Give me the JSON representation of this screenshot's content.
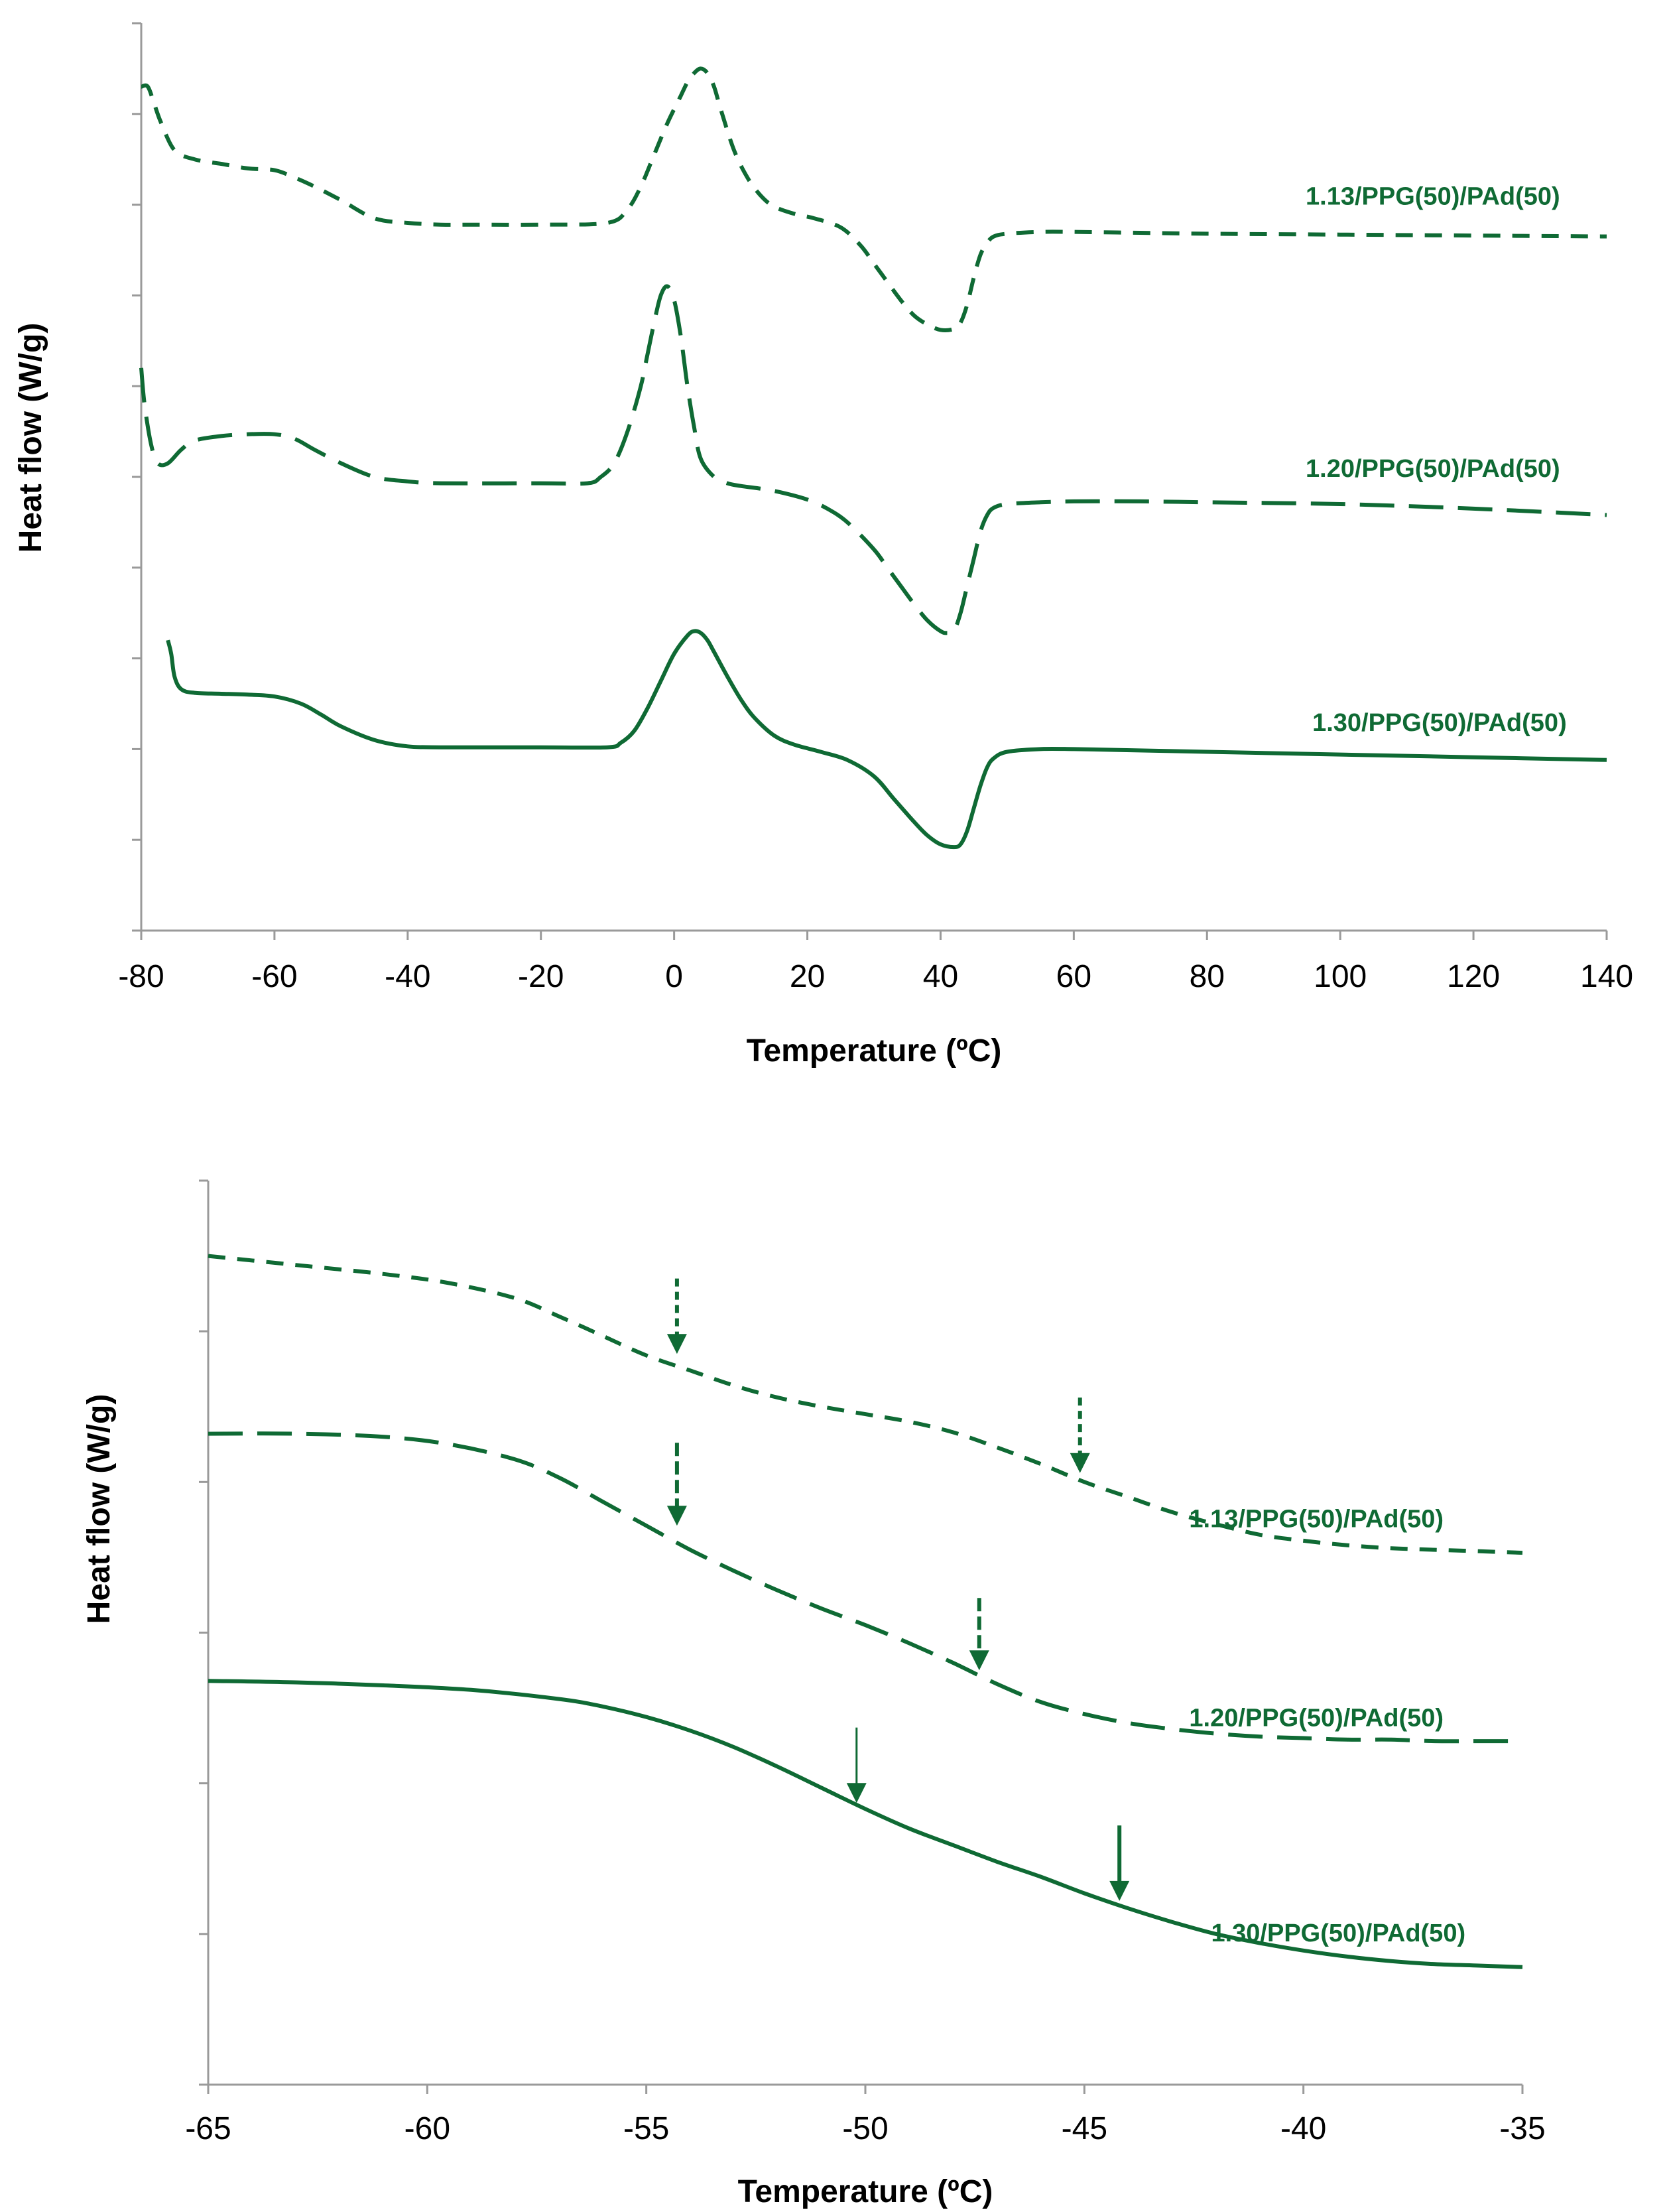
{
  "colors": {
    "series": "#0f6a34",
    "axis": "#9a9a9a",
    "text": "#000000"
  },
  "chart_data": [
    {
      "type": "line",
      "id": "top",
      "title": "",
      "xlabel": "Temperature (ºC)",
      "ylabel": "Heat flow (W/g)",
      "xlim": [
        -80,
        140
      ],
      "ylim": [
        0,
        10
      ],
      "xticks": [
        -80,
        -60,
        -40,
        -20,
        0,
        20,
        40,
        60,
        80,
        100,
        120,
        140
      ],
      "xtick_labels": [
        "-80",
        "-60",
        "-40",
        "-20",
        "0",
        "20",
        "40",
        "60",
        "80",
        "100",
        "120",
        "140"
      ],
      "yticks": [
        0,
        1,
        2,
        3,
        4,
        5,
        6,
        7,
        8,
        9,
        10
      ],
      "ytick_labels": [],
      "series": [
        {
          "name": "1.13/PPG(50)/PAd(50)",
          "style": "dashed-short",
          "label_at": [
            133,
            8.0
          ],
          "x": [
            -80,
            -79,
            -78,
            -77,
            -75,
            -72,
            -68,
            -64,
            -60,
            -57,
            -54,
            -50,
            -45,
            -40,
            -35,
            -30,
            -20,
            -10,
            -7,
            -5,
            -3,
            -1,
            1,
            2,
            3,
            4,
            5,
            6,
            7,
            9,
            11,
            13,
            15,
            18,
            21,
            25,
            28,
            30,
            32,
            34,
            36,
            38,
            40,
            42,
            43,
            44,
            45,
            46,
            47,
            48,
            50,
            55,
            60,
            70,
            80,
            100,
            120,
            140
          ],
          "y": [
            9.3,
            9.3,
            9.1,
            8.9,
            8.6,
            8.5,
            8.45,
            8.4,
            8.38,
            8.3,
            8.2,
            8.05,
            7.85,
            7.8,
            7.78,
            7.78,
            7.78,
            7.8,
            7.95,
            8.2,
            8.55,
            8.9,
            9.2,
            9.35,
            9.45,
            9.5,
            9.45,
            9.3,
            9.05,
            8.6,
            8.3,
            8.1,
            7.98,
            7.9,
            7.85,
            7.75,
            7.55,
            7.35,
            7.15,
            6.95,
            6.78,
            6.68,
            6.62,
            6.63,
            6.7,
            6.9,
            7.2,
            7.45,
            7.58,
            7.65,
            7.68,
            7.7,
            7.7,
            7.69,
            7.68,
            7.67,
            7.66,
            7.65
          ]
        },
        {
          "name": "1.20/PPG(50)/PAd(50)",
          "style": "dashed-long",
          "label_at": [
            133,
            5.0
          ],
          "x": [
            -80,
            -79.5,
            -78.5,
            -77.5,
            -76,
            -74,
            -72,
            -68,
            -64,
            -60,
            -57,
            -54,
            -50,
            -45,
            -40,
            -35,
            -20,
            -13,
            -11,
            -9,
            -7,
            -5,
            -4,
            -3,
            -2,
            -1,
            0,
            1,
            2,
            3,
            4,
            6,
            8,
            10,
            13,
            16,
            20,
            23,
            26,
            30,
            32,
            34,
            36,
            38,
            40,
            41,
            42,
            43,
            44,
            45,
            46,
            47,
            48,
            50,
            55,
            60,
            70,
            80,
            100,
            120,
            140
          ],
          "y": [
            6.2,
            5.8,
            5.35,
            5.15,
            5.15,
            5.3,
            5.4,
            5.45,
            5.47,
            5.47,
            5.42,
            5.3,
            5.15,
            5.0,
            4.95,
            4.93,
            4.93,
            4.93,
            5.0,
            5.15,
            5.5,
            6.0,
            6.35,
            6.7,
            7.0,
            7.1,
            6.95,
            6.55,
            6.0,
            5.55,
            5.2,
            5.0,
            4.93,
            4.9,
            4.87,
            4.83,
            4.75,
            4.65,
            4.5,
            4.2,
            4.0,
            3.8,
            3.6,
            3.42,
            3.3,
            3.28,
            3.3,
            3.5,
            3.8,
            4.1,
            4.4,
            4.58,
            4.66,
            4.7,
            4.72,
            4.73,
            4.73,
            4.72,
            4.7,
            4.65,
            4.58
          ]
        },
        {
          "name": "1.30/PPG(50)/PAd(50)",
          "style": "solid",
          "label_at": [
            134,
            2.2
          ],
          "x": [
            -76,
            -75.5,
            -75,
            -74,
            -72,
            -68,
            -64,
            -60,
            -56,
            -53,
            -50,
            -45,
            -40,
            -35,
            -30,
            -20,
            -10,
            -8,
            -6,
            -4,
            -2,
            0,
            2,
            3,
            4,
            5,
            6,
            8,
            10,
            12,
            15,
            18,
            22,
            26,
            30,
            33,
            36,
            38,
            40,
            42,
            43,
            44,
            45,
            46,
            47,
            48,
            50,
            55,
            60,
            80,
            100,
            120,
            140
          ],
          "y": [
            3.2,
            3.05,
            2.8,
            2.66,
            2.62,
            2.61,
            2.6,
            2.58,
            2.5,
            2.38,
            2.25,
            2.1,
            2.03,
            2.02,
            2.02,
            2.02,
            2.02,
            2.07,
            2.2,
            2.45,
            2.75,
            3.05,
            3.25,
            3.3,
            3.28,
            3.2,
            3.07,
            2.8,
            2.55,
            2.35,
            2.15,
            2.05,
            1.97,
            1.88,
            1.7,
            1.45,
            1.2,
            1.05,
            0.95,
            0.92,
            0.95,
            1.1,
            1.35,
            1.6,
            1.8,
            1.9,
            1.97,
            2.0,
            2.0,
            1.97,
            1.94,
            1.91,
            1.88
          ]
        }
      ]
    },
    {
      "type": "line",
      "id": "bottom",
      "title": "",
      "xlabel": "Temperature (ºC)",
      "ylabel": "Heat flow (W/g)",
      "xlim": [
        -65,
        -35
      ],
      "ylim": [
        0,
        6
      ],
      "xticks": [
        -65,
        -60,
        -55,
        -50,
        -45,
        -40,
        -35
      ],
      "xtick_labels": [
        "-65",
        "-60",
        "-55",
        "-50",
        "-45",
        "-40",
        "-35"
      ],
      "yticks": [
        0,
        1,
        2,
        3,
        4,
        5,
        6
      ],
      "ytick_labels": [],
      "series": [
        {
          "name": "1.13/PPG(50)/PAd(50)",
          "style": "dashed-short",
          "label_at": [
            -36.8,
            3.7
          ],
          "x": [
            -65,
            -63,
            -61,
            -59.5,
            -58,
            -57,
            -56,
            -55,
            -54,
            -53,
            -52,
            -51,
            -50,
            -49,
            -48,
            -47,
            -46,
            -45,
            -44,
            -43,
            -42,
            -41,
            -40,
            -39,
            -38,
            -37,
            -36,
            -35
          ],
          "y": [
            5.5,
            5.44,
            5.38,
            5.32,
            5.22,
            5.1,
            4.97,
            4.84,
            4.74,
            4.64,
            4.56,
            4.5,
            4.45,
            4.4,
            4.33,
            4.23,
            4.12,
            4.0,
            3.9,
            3.8,
            3.72,
            3.65,
            3.61,
            3.58,
            3.56,
            3.55,
            3.54,
            3.53
          ]
        },
        {
          "name": "1.20/PPG(50)/PAd(50)",
          "style": "dashed-long",
          "label_at": [
            -36.8,
            2.38
          ],
          "x": [
            -65,
            -63,
            -61,
            -59.5,
            -58,
            -57,
            -56,
            -55,
            -54,
            -53,
            -52,
            -51,
            -50,
            -49,
            -48,
            -47,
            -46,
            -45,
            -44,
            -43,
            -42,
            -41,
            -40,
            -39,
            -38,
            -37,
            -36,
            -35.3
          ],
          "y": [
            4.32,
            4.32,
            4.3,
            4.25,
            4.15,
            4.03,
            3.87,
            3.71,
            3.55,
            3.41,
            3.28,
            3.16,
            3.05,
            2.93,
            2.8,
            2.66,
            2.54,
            2.46,
            2.4,
            2.36,
            2.33,
            2.31,
            2.3,
            2.29,
            2.29,
            2.28,
            2.28,
            2.28
          ]
        },
        {
          "name": "1.30/PPG(50)/PAd(50)",
          "style": "solid",
          "label_at": [
            -36.3,
            0.95
          ],
          "x": [
            -65,
            -63,
            -61,
            -59,
            -57,
            -56,
            -55,
            -54,
            -53,
            -52,
            -51,
            -50,
            -49,
            -48,
            -47,
            -46,
            -45,
            -44,
            -43,
            -42,
            -41,
            -40,
            -39,
            -38,
            -37,
            -36,
            -35
          ],
          "y": [
            2.68,
            2.67,
            2.65,
            2.62,
            2.56,
            2.51,
            2.44,
            2.35,
            2.24,
            2.11,
            1.97,
            1.83,
            1.7,
            1.59,
            1.48,
            1.38,
            1.27,
            1.17,
            1.08,
            1.0,
            0.94,
            0.89,
            0.85,
            0.82,
            0.8,
            0.79,
            0.78
          ]
        }
      ],
      "annotations": [
        {
          "kind": "arrow",
          "series": "1.13/PPG(50)/PAd(50)",
          "style": "dashed-short",
          "x": -54.3,
          "y": 4.85,
          "length": 0.5
        },
        {
          "kind": "arrow",
          "series": "1.13/PPG(50)/PAd(50)",
          "style": "dashed-short",
          "x": -45.1,
          "y": 4.06,
          "length": 0.5
        },
        {
          "kind": "arrow",
          "series": "1.20/PPG(50)/PAd(50)",
          "style": "dashed-long",
          "x": -54.3,
          "y": 3.71,
          "length": 0.55
        },
        {
          "kind": "arrow",
          "series": "1.20/PPG(50)/PAd(50)",
          "style": "dashed-long",
          "x": -47.4,
          "y": 2.75,
          "length": 0.48
        },
        {
          "kind": "arrow",
          "series": "1.30/PPG(50)/PAd(50)",
          "style": "thin",
          "x": -50.2,
          "y": 1.87,
          "length": 0.5
        },
        {
          "kind": "arrow",
          "series": "1.30/PPG(50)/PAd(50)",
          "style": "solid",
          "x": -44.2,
          "y": 1.22,
          "length": 0.5
        }
      ]
    }
  ]
}
